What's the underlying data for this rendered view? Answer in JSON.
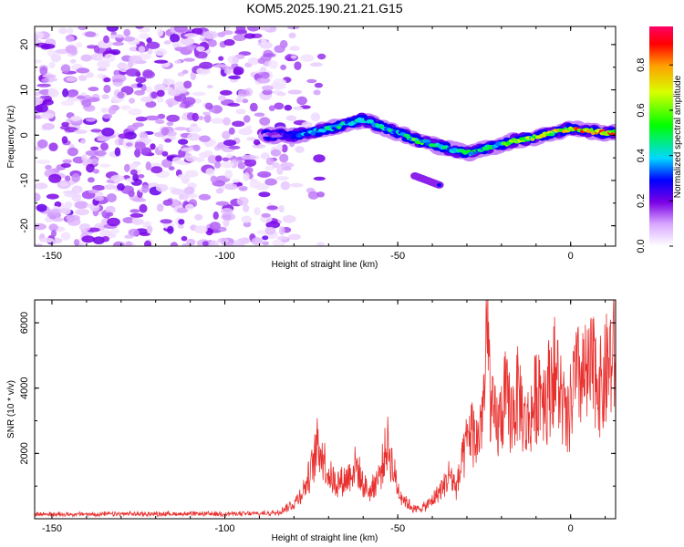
{
  "title": "KOM5.2025.190.21.21.G15",
  "chart_data": [
    {
      "type": "heatmap",
      "xlabel": "Height of straight line (km)",
      "ylabel": "Frequency (Hz)",
      "xlim": [
        -155,
        13
      ],
      "ylim": [
        -24.5,
        24
      ],
      "xticks": [
        -150,
        -100,
        -50,
        0
      ],
      "xtick_labels": [
        "-150",
        "-100",
        "-50",
        "0"
      ],
      "yticks": [
        -20,
        -10,
        0,
        10,
        20
      ],
      "ytick_labels": [
        "-20",
        "-10",
        "0",
        "10",
        "20"
      ],
      "colorbar": {
        "label": "Normalized spectral amplitude",
        "range": [
          0,
          0.97
        ],
        "ticks": [
          0,
          0.2,
          0.4,
          0.6,
          0.8
        ],
        "tick_labels": [
          "0.0",
          "0.2",
          "0.4",
          "0.6",
          "0.8"
        ]
      },
      "noise_region_x": [
        -155,
        -82
      ],
      "signal_track": {
        "x": [
          -88,
          -80,
          -72,
          -65,
          -60,
          -55,
          -50,
          -45,
          -40,
          -35,
          -30,
          -25,
          -20,
          -15,
          -10,
          -5,
          0,
          5,
          10,
          13
        ],
        "frequency": [
          0,
          0,
          1,
          2.5,
          3.5,
          2,
          0.5,
          -1,
          -2,
          -3,
          -4,
          -3,
          -2,
          -1,
          -0.5,
          0.5,
          1.5,
          1,
          0.5,
          0.5
        ],
        "amplitude": [
          0.15,
          0.35,
          0.45,
          0.5,
          0.45,
          0.5,
          0.45,
          0.6,
          0.55,
          0.5,
          0.6,
          0.5,
          0.6,
          0.7,
          0.75,
          0.75,
          0.85,
          0.9,
          0.95,
          0.9
        ]
      },
      "secondary_blob": {
        "x": [
          -45,
          -38
        ],
        "frequency": [
          -9,
          -11
        ],
        "amplitude": 0.3
      }
    },
    {
      "type": "line",
      "xlabel": "Height of straight line (km)",
      "ylabel": "SNR (10 * v/v)",
      "xlim": [
        -155,
        13
      ],
      "ylim": [
        0,
        6700
      ],
      "xticks": [
        -150,
        -100,
        -50,
        0
      ],
      "xtick_labels": [
        "-150",
        "-100",
        "-50",
        "0"
      ],
      "yticks": [
        2000,
        4000,
        6000
      ],
      "ytick_labels": [
        "2000",
        "4000",
        "6000"
      ],
      "color": "#e8302e",
      "series": [
        {
          "x": [
            -155,
            -140,
            -120,
            -100,
            -90,
            -85,
            -80,
            -77,
            -75,
            -73,
            -72,
            -70,
            -68,
            -65,
            -62,
            -60,
            -58,
            -55,
            -53,
            -50,
            -48,
            -45,
            -42,
            -40,
            -38,
            -36,
            -35,
            -33,
            -31,
            -29,
            -27,
            -25,
            -24,
            -23,
            -21,
            -19,
            -17,
            -15,
            -13,
            -11,
            -9,
            -7,
            -5,
            -3,
            -1,
            1,
            3,
            5,
            7,
            9,
            11,
            13
          ],
          "y": [
            150,
            150,
            160,
            160,
            170,
            200,
            500,
            1000,
            1600,
            2500,
            2200,
            1500,
            1200,
            1300,
            1800,
            1100,
            900,
            1500,
            2500,
            1000,
            600,
            300,
            400,
            600,
            900,
            1200,
            1500,
            1000,
            2000,
            3000,
            2500,
            4000,
            6200,
            3500,
            3000,
            4000,
            3400,
            4200,
            3000,
            3600,
            4500,
            4000,
            5000,
            4200,
            3000,
            4500,
            4700,
            4600,
            5000,
            4200,
            5200,
            5400
          ]
        }
      ]
    }
  ]
}
